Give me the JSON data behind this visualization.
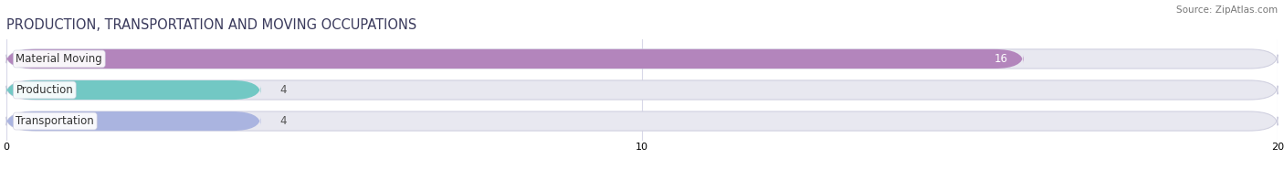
{
  "title": "PRODUCTION, TRANSPORTATION AND MOVING OCCUPATIONS",
  "source": "Source: ZipAtlas.com",
  "categories": [
    "Material Moving",
    "Production",
    "Transportation"
  ],
  "values": [
    16,
    4,
    4
  ],
  "bar_colors": [
    "#b385bc",
    "#72c8c4",
    "#aab4e0"
  ],
  "bar_bg_color": "#e8e8f0",
  "bar_bg_outline": "#d0d0e0",
  "xlim": [
    0,
    20
  ],
  "xticks": [
    0,
    10,
    20
  ],
  "title_fontsize": 10.5,
  "label_fontsize": 8.5,
  "value_fontsize": 8.5,
  "bar_height": 0.62,
  "background_color": "#ffffff",
  "value_color_inside": "#ffffff",
  "value_color_outside": "#555555",
  "grid_color": "#d8d8e8",
  "title_color": "#3a3a5c",
  "source_color": "#777777"
}
